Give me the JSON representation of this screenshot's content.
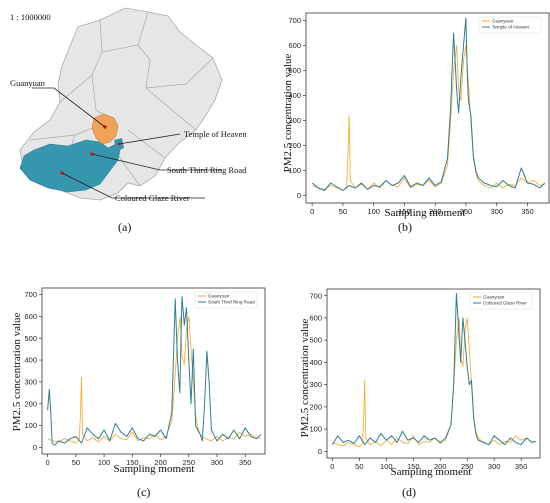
{
  "map": {
    "scale": "1 : 1000000",
    "labels": {
      "guanyuan": "Guanyuan",
      "temple": "Temple of Heaven",
      "south": "South Third Ring Road",
      "glaze": "Coloured Glaze River"
    },
    "colors": {
      "district": "#e8e8e8",
      "guanyuan": "#f0a25a",
      "teal": "#3596ad"
    }
  },
  "captions": [
    "(a)",
    "(b)",
    "(c)",
    "(d)"
  ],
  "colors": {
    "guanyuan": "#f5a623",
    "station": "#2f7e95"
  },
  "chart_data": [
    {
      "type": "line",
      "xlabel": "Sampling moment",
      "ylabel": "PM2.5 concentration value",
      "xlim": [
        -10,
        385
      ],
      "ylim": [
        -30,
        730
      ],
      "xticks": [
        0,
        50,
        100,
        150,
        200,
        250,
        300,
        350
      ],
      "yticks": [
        0,
        100,
        200,
        300,
        400,
        500,
        600,
        700
      ],
      "legend": "top-right",
      "series": [
        {
          "name": "Guanyuan",
          "color": "#f5a623",
          "x": [
            0,
            10,
            20,
            30,
            40,
            50,
            56,
            58,
            60,
            62,
            70,
            80,
            90,
            100,
            110,
            120,
            130,
            140,
            150,
            160,
            170,
            180,
            190,
            200,
            210,
            220,
            225,
            230,
            235,
            238,
            242,
            246,
            250,
            254,
            258,
            262,
            266,
            270,
            280,
            290,
            300,
            310,
            320,
            330,
            340,
            350,
            360,
            370,
            378
          ],
          "values": [
            40,
            30,
            25,
            40,
            30,
            20,
            35,
            150,
            320,
            60,
            30,
            45,
            25,
            50,
            30,
            60,
            40,
            35,
            70,
            30,
            45,
            40,
            60,
            35,
            50,
            120,
            300,
            500,
            600,
            420,
            380,
            540,
            600,
            450,
            300,
            150,
            90,
            60,
            40,
            30,
            50,
            30,
            45,
            40,
            70,
            50,
            60,
            40,
            45
          ]
        },
        {
          "name": "Temple of Heaven",
          "color": "#2f7e95",
          "x": [
            0,
            10,
            20,
            30,
            40,
            50,
            60,
            70,
            80,
            90,
            100,
            110,
            120,
            130,
            140,
            150,
            160,
            170,
            180,
            190,
            200,
            210,
            220,
            225,
            230,
            235,
            238,
            242,
            246,
            250,
            252,
            254,
            258,
            262,
            266,
            270,
            280,
            290,
            300,
            310,
            320,
            330,
            340,
            350,
            360,
            370,
            378
          ],
          "values": [
            50,
            30,
            20,
            50,
            35,
            20,
            40,
            30,
            50,
            25,
            40,
            35,
            60,
            40,
            50,
            80,
            35,
            50,
            40,
            70,
            40,
            55,
            150,
            350,
            650,
            420,
            330,
            480,
            600,
            710,
            500,
            380,
            320,
            160,
            100,
            70,
            50,
            40,
            35,
            60,
            40,
            30,
            110,
            50,
            45,
            30,
            50
          ]
        }
      ]
    },
    {
      "type": "line",
      "xlabel": "Sampling moment",
      "ylabel": "PM2.5 concentration value",
      "xlim": [
        -10,
        385
      ],
      "ylim": [
        -30,
        730
      ],
      "xticks": [
        0,
        50,
        100,
        150,
        200,
        250,
        300,
        350
      ],
      "yticks": [
        0,
        100,
        200,
        300,
        400,
        500,
        600,
        700
      ],
      "legend": "top-right",
      "series": [
        {
          "name": "Guanyuan",
          "color": "#f5a623",
          "x": [
            0,
            10,
            20,
            30,
            40,
            50,
            56,
            58,
            60,
            62,
            70,
            80,
            90,
            100,
            110,
            120,
            130,
            140,
            150,
            160,
            170,
            180,
            190,
            200,
            210,
            220,
            225,
            230,
            235,
            238,
            242,
            246,
            250,
            254,
            258,
            262,
            266,
            270,
            280,
            290,
            300,
            310,
            320,
            330,
            340,
            350,
            360,
            370,
            378
          ],
          "values": [
            40,
            30,
            25,
            40,
            30,
            20,
            35,
            150,
            320,
            60,
            30,
            45,
            25,
            50,
            30,
            60,
            40,
            35,
            70,
            30,
            45,
            40,
            60,
            35,
            50,
            120,
            300,
            500,
            600,
            420,
            380,
            540,
            600,
            450,
            300,
            150,
            90,
            60,
            40,
            30,
            50,
            30,
            45,
            40,
            70,
            50,
            60,
            40,
            45
          ]
        },
        {
          "name": "South Third Ring Road",
          "color": "#2f7e95",
          "x": [
            0,
            3,
            5,
            8,
            12,
            20,
            30,
            40,
            50,
            60,
            70,
            80,
            90,
            100,
            110,
            120,
            130,
            140,
            150,
            160,
            170,
            180,
            190,
            200,
            210,
            220,
            226,
            230,
            234,
            238,
            242,
            246,
            250,
            254,
            258,
            262,
            266,
            270,
            274,
            278,
            282,
            286,
            290,
            300,
            310,
            320,
            330,
            340,
            350,
            360,
            370,
            378
          ],
          "values": [
            170,
            265,
            180,
            20,
            10,
            30,
            20,
            40,
            50,
            20,
            90,
            60,
            40,
            80,
            30,
            110,
            70,
            50,
            90,
            40,
            30,
            60,
            50,
            80,
            40,
            160,
            680,
            400,
            250,
            690,
            560,
            640,
            400,
            200,
            450,
            100,
            80,
            60,
            30,
            200,
            440,
            300,
            80,
            30,
            60,
            40,
            80,
            40,
            90,
            50,
            40,
            60
          ]
        }
      ]
    },
    {
      "type": "line",
      "xlabel": "Sampling moment",
      "ylabel": "PM2.5 concentration value",
      "xlim": [
        -10,
        385
      ],
      "ylim": [
        -30,
        730
      ],
      "xticks": [
        0,
        50,
        100,
        150,
        200,
        250,
        300,
        350
      ],
      "yticks": [
        0,
        100,
        200,
        300,
        400,
        500,
        600,
        700
      ],
      "legend": "top-right",
      "series": [
        {
          "name": "Guanyuan",
          "color": "#f5a623",
          "x": [
            0,
            10,
            20,
            30,
            40,
            50,
            56,
            58,
            60,
            62,
            70,
            80,
            90,
            100,
            110,
            120,
            130,
            140,
            150,
            160,
            170,
            180,
            190,
            200,
            210,
            220,
            225,
            230,
            235,
            238,
            242,
            246,
            250,
            254,
            258,
            262,
            266,
            270,
            280,
            290,
            300,
            310,
            320,
            330,
            340,
            350,
            360,
            370,
            378
          ],
          "values": [
            40,
            30,
            25,
            40,
            30,
            20,
            35,
            150,
            320,
            60,
            30,
            45,
            25,
            50,
            30,
            60,
            40,
            35,
            70,
            30,
            45,
            40,
            60,
            35,
            50,
            120,
            300,
            500,
            600,
            420,
            380,
            540,
            600,
            450,
            300,
            150,
            90,
            60,
            40,
            30,
            50,
            30,
            45,
            40,
            70,
            50,
            60,
            40,
            45
          ]
        },
        {
          "name": "Coloured Glaze River",
          "color": "#2f7e95",
          "x": [
            0,
            10,
            20,
            30,
            40,
            50,
            60,
            70,
            80,
            90,
            100,
            110,
            120,
            130,
            140,
            150,
            160,
            170,
            180,
            190,
            200,
            210,
            220,
            225,
            230,
            234,
            238,
            242,
            246,
            250,
            254,
            258,
            262,
            266,
            270,
            280,
            290,
            300,
            310,
            320,
            330,
            340,
            350,
            360,
            370,
            378
          ],
          "values": [
            30,
            70,
            40,
            50,
            35,
            70,
            30,
            60,
            40,
            80,
            50,
            70,
            40,
            90,
            50,
            60,
            40,
            70,
            50,
            60,
            40,
            60,
            120,
            300,
            710,
            550,
            400,
            600,
            500,
            380,
            300,
            320,
            150,
            80,
            50,
            40,
            30,
            70,
            50,
            30,
            60,
            40,
            30,
            60,
            40,
            45
          ]
        }
      ]
    }
  ]
}
